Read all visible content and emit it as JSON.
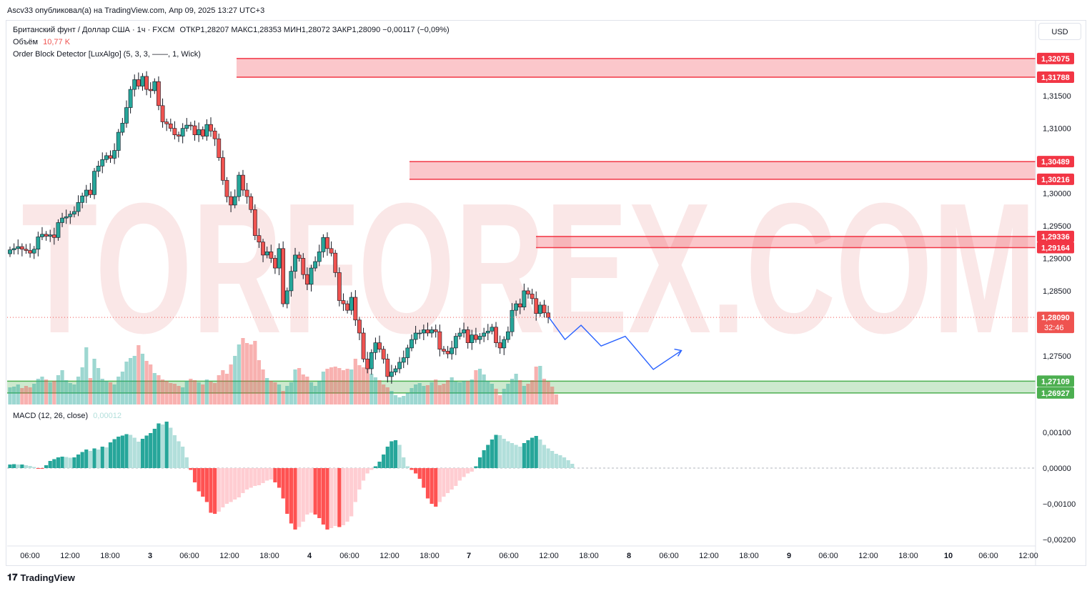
{
  "header": {
    "published": "Ascv33 опубликовал(а) на TradingView.com, Апр 09, 2025 13:27 UTC+3",
    "symbol": "Британский фунт / Доллар США · 1ч · FXCM",
    "ohlc": "ОТКР1,28207  МАКС1,28353  МИН1,28072  ЗАКР1,28090  −0,00117 (−0,09%)",
    "volume_label": "Объём",
    "volume_value": "10,77 K",
    "indicator": "Order Block Detector [LuxAlgo] (5, 3, 3, ——, 1, Wick)"
  },
  "currency_button": "USD",
  "watermark": "TORFOREX.COM",
  "footer_brand": "TradingView",
  "colors": {
    "up": "#26a69a",
    "down": "#ef5350",
    "zone_red": "#f23645",
    "zone_green": "#4caf50",
    "projection": "#2962ff"
  },
  "chart_data": [
    {
      "type": "candlestick",
      "title": "Британский фунт / Доллар США · 1ч · FXCM",
      "ylim": [
        1.2675,
        1.3225
      ],
      "y_ticks": [
        "1,31500",
        "1,31000",
        "1,30000",
        "1,29500",
        "1,29000",
        "1,28500",
        "1,27500"
      ],
      "y_tick_values": [
        1.315,
        1.31,
        1.3,
        1.295,
        1.29,
        1.285,
        1.275
      ],
      "x_ticks": [
        "06:00",
        "12:00",
        "18:00",
        "3",
        "06:00",
        "12:00",
        "18:00",
        "4",
        "06:00",
        "12:00",
        "18:00",
        "7",
        "06:00",
        "12:00",
        "18:00",
        "8",
        "06:00",
        "12:00",
        "18:00",
        "9",
        "06:00",
        "12:00",
        "18:00",
        "10",
        "06:00",
        "12:00"
      ],
      "current_price": {
        "label": "1,28090",
        "value": 1.2809,
        "countdown": "32:46"
      },
      "order_blocks": [
        {
          "color": "red",
          "top": 1.32075,
          "bottom": 1.31788,
          "top_label": "1,32075",
          "bottom_label": "1,31788"
        },
        {
          "color": "red",
          "top": 1.30489,
          "bottom": 1.30216,
          "top_label": "1,30489",
          "bottom_label": "1,30216"
        },
        {
          "color": "red",
          "top": 1.29336,
          "bottom": 1.29164,
          "top_label": "1,29336",
          "bottom_label": "1,29164"
        },
        {
          "color": "green",
          "top": 1.27109,
          "bottom": 1.26927,
          "top_label": "1,27109",
          "bottom_label": "1,26927"
        }
      ],
      "closes": [
        1.2913,
        1.2915,
        1.2918,
        1.2914,
        1.2912,
        1.2908,
        1.2914,
        1.2933,
        1.2937,
        1.2934,
        1.2936,
        1.2932,
        1.2955,
        1.2962,
        1.2964,
        1.2968,
        1.2972,
        1.2986,
        1.2996,
        1.3005,
        1.2998,
        1.3034,
        1.3042,
        1.3052,
        1.3058,
        1.3054,
        1.3066,
        1.3094,
        1.3108,
        1.3132,
        1.316,
        1.3175,
        1.3165,
        1.318,
        1.316,
        1.3158,
        1.3172,
        1.3135,
        1.311,
        1.3107,
        1.31,
        1.309,
        1.3088,
        1.31,
        1.3105,
        1.3104,
        1.309,
        1.3098,
        1.3088,
        1.3106,
        1.3096,
        1.3084,
        1.3055,
        1.302,
        1.2995,
        1.2982,
        1.2995,
        1.3028,
        1.3005,
        1.2995,
        1.2975,
        1.2935,
        1.2925,
        1.2905,
        1.291,
        1.29,
        1.2885,
        1.2915,
        1.283,
        1.285,
        1.288,
        1.2905,
        1.29,
        1.2875,
        1.286,
        1.2885,
        1.2895,
        1.291,
        1.2932,
        1.2915,
        1.2908,
        1.2878,
        1.2835,
        1.283,
        1.282,
        1.284,
        1.2805,
        1.2785,
        1.2745,
        1.273,
        1.2755,
        1.277,
        1.276,
        1.2745,
        1.2718,
        1.2725,
        1.273,
        1.274,
        1.2747,
        1.2762,
        1.2775,
        1.2785,
        1.2785,
        1.279,
        1.2785,
        1.279,
        1.2787,
        1.276,
        1.2757,
        1.2753,
        1.2762,
        1.278,
        1.2785,
        1.279,
        1.277,
        1.2782,
        1.2775,
        1.278,
        1.2785,
        1.2788,
        1.2794,
        1.277,
        1.2762,
        1.2775,
        1.2787,
        1.282,
        1.283,
        1.2825,
        1.285,
        1.2845,
        1.2838,
        1.2815,
        1.2828,
        1.2816,
        1.2809
      ],
      "volumes": [
        2.4,
        2.5,
        2.8,
        2.3,
        2.6,
        2.4,
        2.9,
        3.6,
        3.9,
        3.5,
        3.1,
        3.3,
        4.1,
        4.8,
        3.4,
        3.0,
        2.8,
        3.9,
        5.2,
        8.0,
        3.7,
        6.4,
        5.1,
        3.6,
        3.3,
        3.1,
        2.8,
        3.9,
        4.6,
        6.0,
        6.5,
        6.8,
        8.3,
        7.1,
        6.1,
        5.6,
        4.4,
        4.1,
        3.5,
        3.3,
        3.0,
        2.9,
        2.6,
        2.4,
        3.3,
        3.6,
        3.4,
        3.1,
        2.8,
        3.5,
        3.2,
        3.0,
        4.1,
        4.8,
        4.3,
        5.6,
        6.8,
        8.4,
        9.3,
        8.6,
        8.4,
        8.9,
        6.2,
        4.9,
        3.7,
        3.3,
        3.1,
        2.8,
        1.9,
        2.6,
        3.1,
        4.9,
        5.1,
        4.2,
        3.9,
        3.1,
        2.6,
        3.3,
        4.6,
        5.0,
        5.2,
        5.3,
        5.1,
        4.8,
        5.0,
        4.9,
        6.4,
        5.5,
        5.2,
        5.6,
        4.3,
        3.8,
        3.4,
        2.8,
        2.4,
        1.9,
        1.3,
        1.0,
        1.2,
        1.6,
        2.3,
        2.8,
        3.0,
        2.6,
        2.7,
        3.1,
        3.5,
        2.7,
        2.9,
        3.4,
        3.8,
        3.2,
        3.1,
        3.3,
        3.3,
        3.5,
        4.8,
        5.0,
        4.2,
        3.3,
        2.9,
        2.2,
        1.3,
        2.2,
        2.9,
        3.6,
        4.3,
        3.4,
        2.6,
        2.9,
        3.4,
        5.3,
        5.4,
        3.6,
        3.2,
        2.5,
        1.4
      ],
      "projection": [
        [
          1.2809,
          0
        ],
        [
          1.2775,
          4
        ],
        [
          1.2797,
          8
        ],
        [
          1.2765,
          13
        ],
        [
          1.278,
          19
        ],
        [
          1.2729,
          26
        ],
        [
          1.2758,
          33
        ]
      ],
      "volume_indicator": {
        "label": "Объём",
        "value": "10,77 K"
      }
    },
    {
      "type": "bar",
      "title": "MACD (12, 26, close)",
      "value_label": "0,00012",
      "ylim": [
        -0.0021,
        0.0014
      ],
      "y_ticks": [
        "0,00100",
        "0,00000",
        "−0,00100",
        "−0,00200"
      ],
      "y_tick_values": [
        0.001,
        0,
        -0.001,
        -0.002
      ],
      "histogram": [
        0.0001,
        0.00011,
        0.0001,
        0.0001,
        8e-05,
        6e-05,
        3e-05,
        -2e-05,
        -2e-05,
        8e-05,
        0.0002,
        0.00025,
        0.0003,
        0.00032,
        0.00031,
        0.00029,
        0.0003,
        0.00038,
        0.00045,
        0.00052,
        0.00048,
        0.00055,
        0.00052,
        0.0006,
        0.00058,
        0.00072,
        0.00081,
        0.00088,
        0.00091,
        0.00095,
        0.00093,
        0.00085,
        0.00074,
        0.00082,
        0.00091,
        0.00098,
        0.0011,
        0.00125,
        0.00122,
        0.0013,
        0.00113,
        0.00092,
        0.00075,
        0.0006,
        0.0003,
        -5e-05,
        -0.0004,
        -0.00065,
        -0.0008,
        -0.00095,
        -0.00125,
        -0.00128,
        -0.00122,
        -0.0011,
        -0.001,
        -0.00095,
        -0.00088,
        -0.00082,
        -0.0007,
        -0.0006,
        -0.00055,
        -0.0005,
        -0.00048,
        -0.00042,
        -0.00035,
        -0.00032,
        -0.0004,
        -0.00055,
        -0.00085,
        -0.00128,
        -0.00155,
        -0.00172,
        -0.00165,
        -0.0015,
        -0.0013,
        -0.00125,
        -0.0013,
        -0.0014,
        -0.00158,
        -0.00172,
        -0.00168,
        -0.00162,
        -0.00165,
        -0.0016,
        -0.0015,
        -0.00135,
        -0.00095,
        -0.0006,
        -0.00035,
        -0.00015,
        -5e-05,
        5e-05,
        0.00018,
        0.00038,
        0.0006,
        0.00075,
        0.00078,
        0.00065,
        0.0003,
        5e-05,
        -5e-05,
        -0.00015,
        -0.0003,
        -0.00055,
        -0.00085,
        -0.001,
        -0.00108,
        -0.00095,
        -0.0008,
        -0.0007,
        -0.0006,
        -0.0005,
        -0.00035,
        -0.00025,
        -0.00015,
        -0.0001,
        5e-05,
        0.0003,
        0.0005,
        0.00065,
        0.0008,
        0.00093,
        0.00092,
        0.00082,
        0.00075,
        0.0007,
        0.00065,
        0.0006,
        0.0007,
        0.00078,
        0.00085,
        0.0009,
        0.0008,
        0.00065,
        0.00055,
        0.00048,
        0.0004,
        0.00036,
        0.0003,
        0.00022,
        0.00012
      ]
    }
  ]
}
